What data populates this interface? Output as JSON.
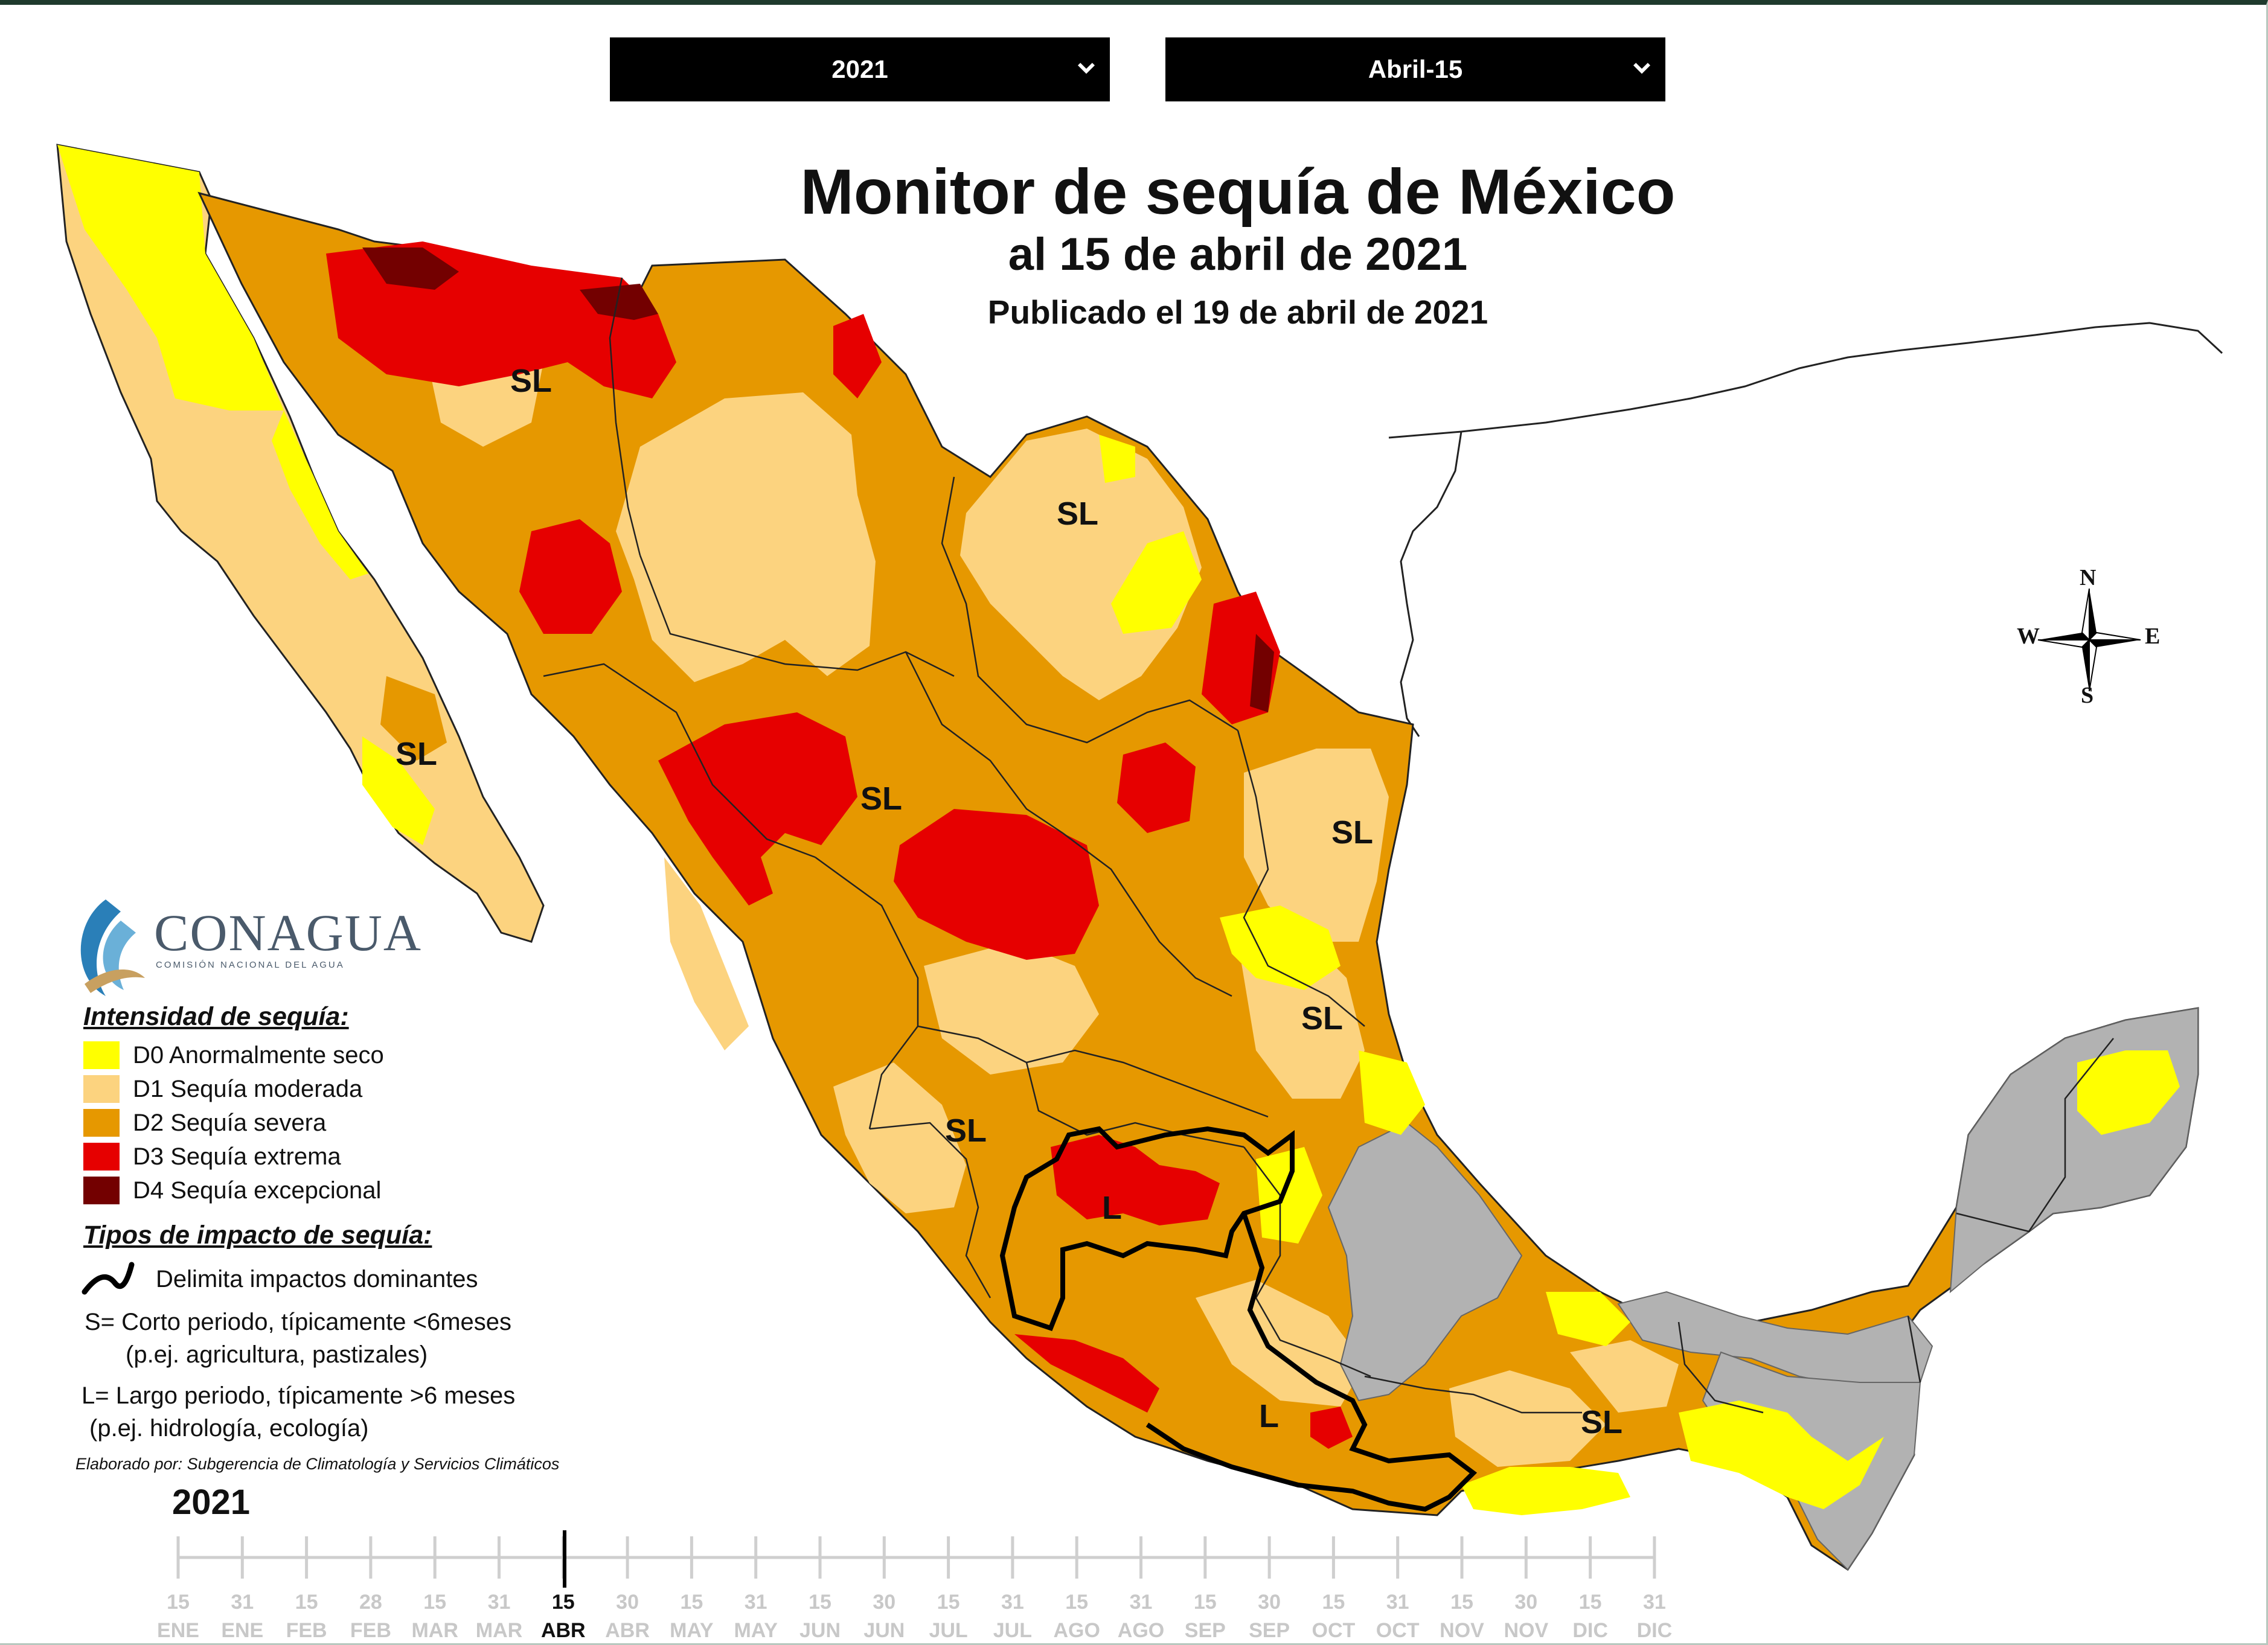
{
  "controls": {
    "year_select": "2021",
    "date_select": "Abril-15"
  },
  "header": {
    "title": "Monitor de sequía de México",
    "subtitle": "al 15 de abril de 2021",
    "published": "Publicado el 19 de abril de 2021"
  },
  "map": {
    "region_labels": [
      "SL",
      "SL",
      "SL",
      "SL",
      "SL",
      "SL",
      "SL",
      "SL"
    ],
    "impact_labels": [
      "L",
      "L"
    ],
    "compass": {
      "north": "N",
      "south": "S",
      "east": "E",
      "west": "W"
    }
  },
  "logo": {
    "name": "CONAGUA",
    "subtitle": "COMISIÓN NACIONAL DEL AGUA"
  },
  "legend": {
    "intensity_title": "Intensidad de sequía:",
    "categories": [
      {
        "code": "D0",
        "label": "D0 Anormalmente seco",
        "color": "#ffff00"
      },
      {
        "code": "D1",
        "label": "D1 Sequía moderada",
        "color": "#fcd37f"
      },
      {
        "code": "D2",
        "label": "D2 Sequía severa",
        "color": "#e69800"
      },
      {
        "code": "D3",
        "label": "D3 Sequía extrema",
        "color": "#e60000"
      },
      {
        "code": "D4",
        "label": "D4 Sequía excepcional",
        "color": "#730000"
      }
    ],
    "impact_title": "Tipos de impacto de sequía:",
    "impact_line": "Delimita impactos dominantes",
    "short_line1": "S= Corto periodo, típicamente <6meses",
    "short_line2": "(p.ej. agricultura, pastizales)",
    "long_line1": "L= Largo periodo, típicamente >6 meses",
    "long_line2": "(p.ej. hidrología, ecología)",
    "credit": "Elaborado por: Subgerencia de Climatología y Servicios Climáticos"
  },
  "timeline": {
    "year": "2021",
    "days": [
      "15",
      "31",
      "15",
      "28",
      "15",
      "31",
      "15",
      "30",
      "15",
      "31",
      "15",
      "30",
      "15",
      "31",
      "15",
      "31",
      "15",
      "30",
      "15",
      "31",
      "15",
      "30",
      "15",
      "31"
    ],
    "months": [
      "ENE",
      "ENE",
      "FEB",
      "FEB",
      "MAR",
      "MAR",
      "ABR",
      "ABR",
      "MAY",
      "MAY",
      "JUN",
      "JUN",
      "JUL",
      "JUL",
      "AGO",
      "AGO",
      "SEP",
      "SEP",
      "OCT",
      "OCT",
      "NOV",
      "NOV",
      "DIC",
      "DIC"
    ],
    "selected_index": 6
  }
}
